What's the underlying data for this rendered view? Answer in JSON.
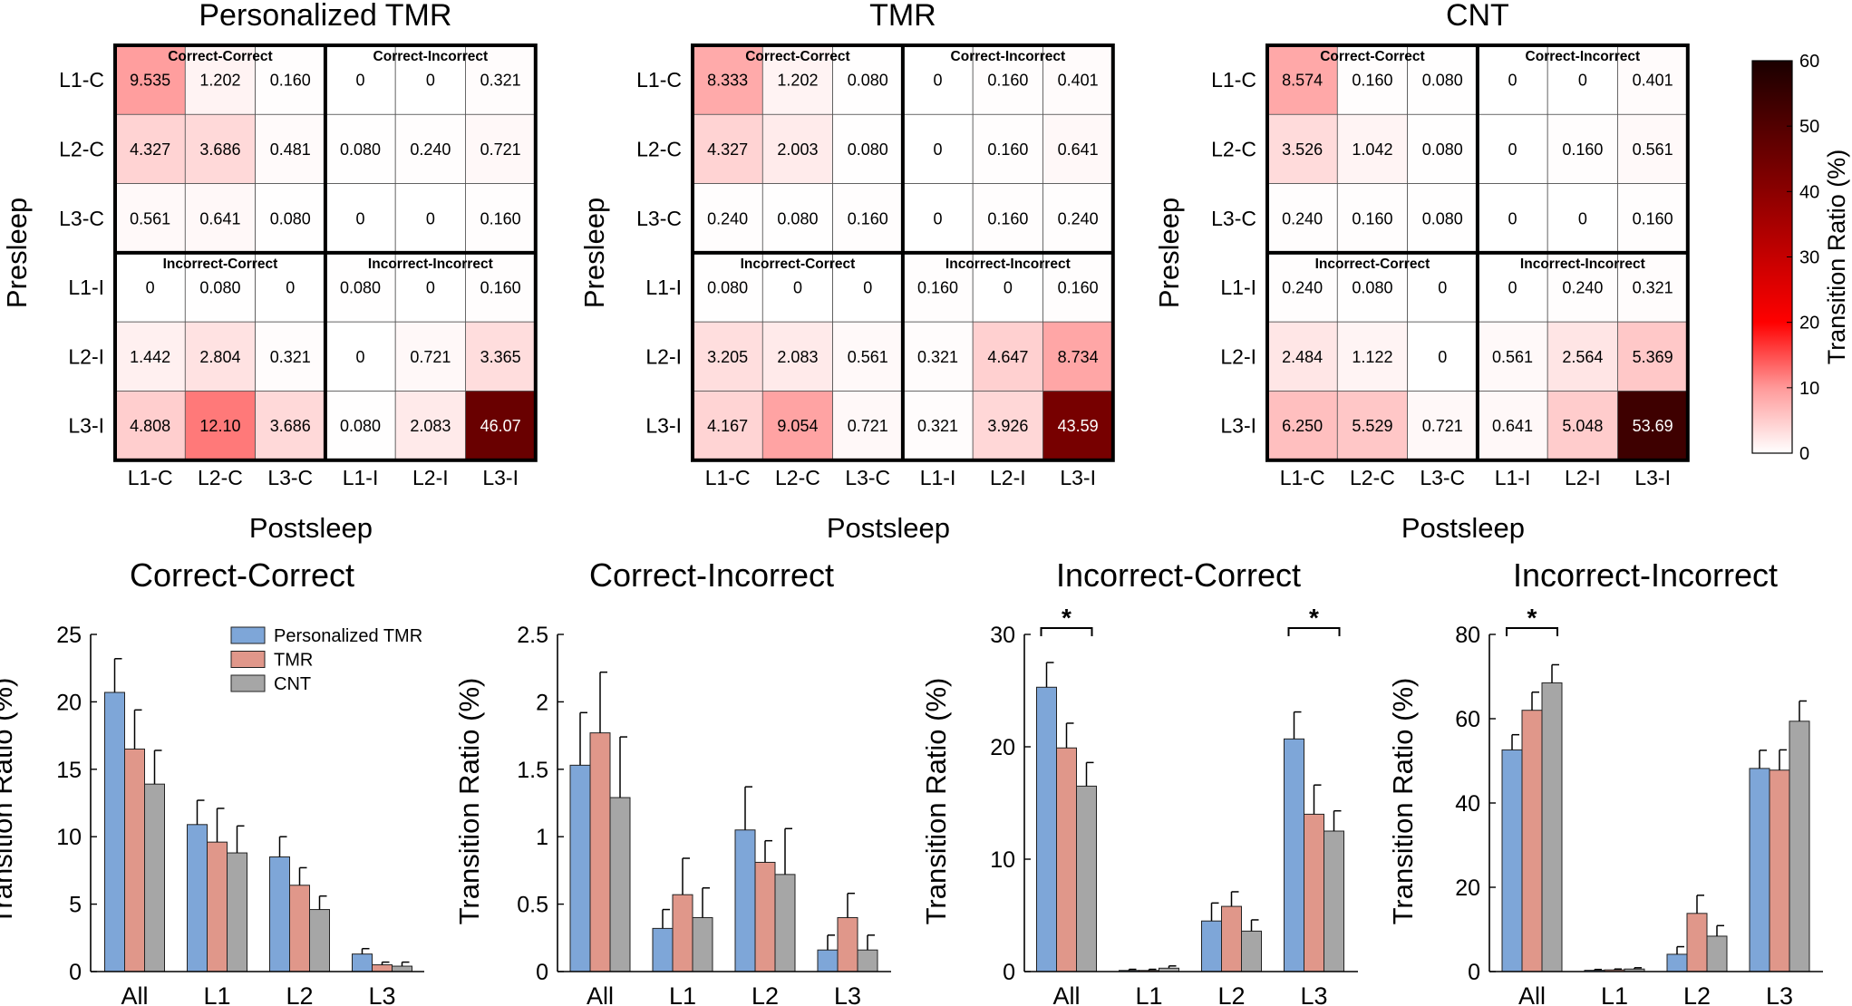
{
  "chart_data": {
    "heatmaps": [
      {
        "type": "heatmap",
        "title": "Personalized TMR",
        "ylabel": "Presleep",
        "xlabel": "Postsleep",
        "rows": [
          "L1-C",
          "L2-C",
          "L3-C",
          "L1-I",
          "L2-I",
          "L3-I"
        ],
        "cols": [
          "L1-C",
          "L2-C",
          "L3-C",
          "L1-I",
          "L2-I",
          "L3-I"
        ],
        "quadrant_labels": [
          "Correct-Correct",
          "Correct-Incorrect",
          "Incorrect-Correct",
          "Incorrect-Incorrect"
        ],
        "values": [
          [
            "9.535",
            "1.202",
            "0.160",
            "0",
            "0",
            "0.321"
          ],
          [
            "4.327",
            "3.686",
            "0.481",
            "0.080",
            "0.240",
            "0.721"
          ],
          [
            "0.561",
            "0.641",
            "0.080",
            "0",
            "0",
            "0.160"
          ],
          [
            "0",
            "0.080",
            "0",
            "0.080",
            "0",
            "0.160"
          ],
          [
            "1.442",
            "2.804",
            "0.321",
            "0",
            "0.721",
            "3.365"
          ],
          [
            "4.808",
            "12.10",
            "3.686",
            "0.080",
            "2.083",
            "46.07"
          ]
        ]
      },
      {
        "type": "heatmap",
        "title": "TMR",
        "ylabel": "Presleep",
        "xlabel": "Postsleep",
        "rows": [
          "L1-C",
          "L2-C",
          "L3-C",
          "L1-I",
          "L2-I",
          "L3-I"
        ],
        "cols": [
          "L1-C",
          "L2-C",
          "L3-C",
          "L1-I",
          "L2-I",
          "L3-I"
        ],
        "quadrant_labels": [
          "Correct-Correct",
          "Correct-Incorrect",
          "Incorrect-Correct",
          "Incorrect-Incorrect"
        ],
        "values": [
          [
            "8.333",
            "1.202",
            "0.080",
            "0",
            "0.160",
            "0.401"
          ],
          [
            "4.327",
            "2.003",
            "0.080",
            "0",
            "0.160",
            "0.641"
          ],
          [
            "0.240",
            "0.080",
            "0.160",
            "0",
            "0.160",
            "0.240"
          ],
          [
            "0.080",
            "0",
            "0",
            "0.160",
            "0",
            "0.160"
          ],
          [
            "3.205",
            "2.083",
            "0.561",
            "0.321",
            "4.647",
            "8.734"
          ],
          [
            "4.167",
            "9.054",
            "0.721",
            "0.321",
            "3.926",
            "43.59"
          ]
        ]
      },
      {
        "type": "heatmap",
        "title": "CNT",
        "ylabel": "Presleep",
        "xlabel": "Postsleep",
        "rows": [
          "L1-C",
          "L2-C",
          "L3-C",
          "L1-I",
          "L2-I",
          "L3-I"
        ],
        "cols": [
          "L1-C",
          "L2-C",
          "L3-C",
          "L1-I",
          "L2-I",
          "L3-I"
        ],
        "quadrant_labels": [
          "Correct-Correct",
          "Correct-Incorrect",
          "Incorrect-Correct",
          "Incorrect-Incorrect"
        ],
        "values": [
          [
            "8.574",
            "0.160",
            "0.080",
            "0",
            "0",
            "0.401"
          ],
          [
            "3.526",
            "1.042",
            "0.080",
            "0",
            "0.160",
            "0.561"
          ],
          [
            "0.240",
            "0.160",
            "0.080",
            "0",
            "0",
            "0.160"
          ],
          [
            "0.240",
            "0.080",
            "0",
            "0",
            "0.240",
            "0.321"
          ],
          [
            "2.484",
            "1.122",
            "0",
            "0.561",
            "2.564",
            "5.369"
          ],
          [
            "6.250",
            "5.529",
            "0.721",
            "0.641",
            "5.048",
            "53.69"
          ]
        ]
      }
    ],
    "colorbar": {
      "label": "Transition Ratio (%)",
      "range": [
        0,
        60
      ],
      "ticks": [
        "0",
        "10",
        "20",
        "30",
        "40",
        "50",
        "60"
      ],
      "colors": [
        "#ffffff",
        "#ff9999",
        "#ff0000",
        "#8b0000",
        "#1a0000"
      ]
    },
    "bar_charts": [
      {
        "type": "bar",
        "title": "Correct-Correct",
        "ylabel": "Transition Ratio (%)",
        "categories": [
          "All",
          "L1",
          "L2",
          "L3"
        ],
        "ylim": [
          0,
          25
        ],
        "yticks": [
          "0",
          "5",
          "10",
          "15",
          "20",
          "25"
        ],
        "series": [
          {
            "name": "Personalized TMR",
            "color": "#7ea6d8",
            "values": [
              20.7,
              10.9,
              8.5,
              1.3
            ],
            "errors": [
              2.5,
              1.8,
              1.5,
              0.4
            ]
          },
          {
            "name": "TMR",
            "color": "#e0978a",
            "values": [
              16.5,
              9.6,
              6.4,
              0.5
            ],
            "errors": [
              2.9,
              2.5,
              1.3,
              0.2
            ]
          },
          {
            "name": "CNT",
            "color": "#a6a6a6",
            "values": [
              13.9,
              8.8,
              4.6,
              0.4
            ],
            "errors": [
              2.5,
              2.0,
              1.0,
              0.3
            ]
          }
        ],
        "legend": [
          "Personalized TMR",
          "TMR",
          "CNT"
        ],
        "significance": []
      },
      {
        "type": "bar",
        "title": "Correct-Incorrect",
        "ylabel": "Transition Ratio (%)",
        "categories": [
          "All",
          "L1",
          "L2",
          "L3"
        ],
        "ylim": [
          0,
          2.5
        ],
        "yticks": [
          "0",
          "0.5",
          "1",
          "1.5",
          "2",
          "2.5"
        ],
        "series": [
          {
            "name": "Personalized TMR",
            "color": "#7ea6d8",
            "values": [
              1.53,
              0.32,
              1.05,
              0.16
            ],
            "errors": [
              0.39,
              0.14,
              0.32,
              0.11
            ]
          },
          {
            "name": "TMR",
            "color": "#e0978a",
            "values": [
              1.77,
              0.57,
              0.81,
              0.4
            ],
            "errors": [
              0.45,
              0.27,
              0.16,
              0.18
            ]
          },
          {
            "name": "CNT",
            "color": "#a6a6a6",
            "values": [
              1.29,
              0.4,
              0.72,
              0.16
            ],
            "errors": [
              0.45,
              0.22,
              0.34,
              0.11
            ]
          }
        ],
        "significance": []
      },
      {
        "type": "bar",
        "title": "Incorrect-Correct",
        "ylabel": "Transition Ratio (%)",
        "categories": [
          "All",
          "L1",
          "L2",
          "L3"
        ],
        "ylim": [
          0,
          30
        ],
        "yticks": [
          "0",
          "10",
          "20",
          "30"
        ],
        "series": [
          {
            "name": "Personalized TMR",
            "color": "#7ea6d8",
            "values": [
              25.3,
              0.1,
              4.5,
              20.7
            ],
            "errors": [
              2.2,
              0.1,
              1.6,
              2.4
            ]
          },
          {
            "name": "TMR",
            "color": "#e0978a",
            "values": [
              19.9,
              0.1,
              5.8,
              14.0
            ],
            "errors": [
              2.2,
              0.1,
              1.3,
              2.6
            ]
          },
          {
            "name": "CNT",
            "color": "#a6a6a6",
            "values": [
              16.5,
              0.3,
              3.6,
              12.5
            ],
            "errors": [
              2.1,
              0.2,
              1.0,
              1.8
            ]
          }
        ],
        "significance": [
          {
            "category": "All",
            "label": "*"
          },
          {
            "category": "L3",
            "label": "*"
          }
        ]
      },
      {
        "type": "bar",
        "title": "Incorrect-Incorrect",
        "ylabel": "Transition Ratio (%)",
        "categories": [
          "All",
          "L1",
          "L2",
          "L3"
        ],
        "ylim": [
          0,
          80
        ],
        "yticks": [
          "0",
          "20",
          "40",
          "60",
          "80"
        ],
        "series": [
          {
            "name": "Personalized TMR",
            "color": "#7ea6d8",
            "values": [
              52.6,
              0.3,
              4.1,
              48.2
            ],
            "errors": [
              3.6,
              0.2,
              1.8,
              4.3
            ]
          },
          {
            "name": "TMR",
            "color": "#e0978a",
            "values": [
              62.0,
              0.4,
              13.8,
              47.8
            ],
            "errors": [
              4.3,
              0.2,
              4.3,
              4.8
            ]
          },
          {
            "name": "CNT",
            "color": "#a6a6a6",
            "values": [
              68.5,
              0.6,
              8.4,
              59.4
            ],
            "errors": [
              4.3,
              0.3,
              2.5,
              4.8
            ]
          }
        ],
        "significance": [
          {
            "category": "All",
            "label": "*"
          }
        ]
      }
    ]
  }
}
